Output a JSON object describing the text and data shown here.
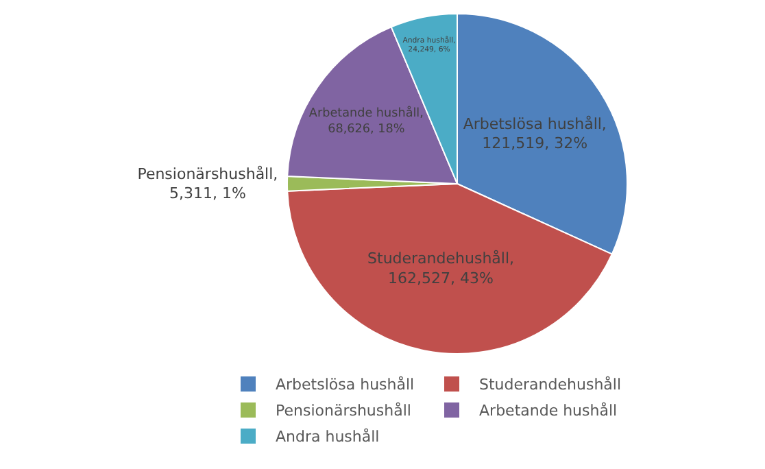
{
  "chart_data": {
    "type": "pie",
    "categories": [
      "Arbetslösa hushåll",
      "Studerandehushåll",
      "Pensionärshushåll",
      "Arbetande hushåll",
      "Andra hushåll"
    ],
    "values": [
      121519,
      162527,
      5311,
      68626,
      24249
    ],
    "colors": [
      "#4f81bd",
      "#c0504d",
      "#9bbb59",
      "#8064a2",
      "#4bacc6"
    ],
    "value_labels": [
      "Arbetslösa hushåll, 121,519, 32%",
      "Studerandehushåll, 162,527, 43%",
      "Pensionärshushåll, 5,311, 1%",
      "Arbetande hushåll, 68,626, 18%",
      "Andra hushåll, 24,249, 6%"
    ],
    "legend": "bottom"
  }
}
